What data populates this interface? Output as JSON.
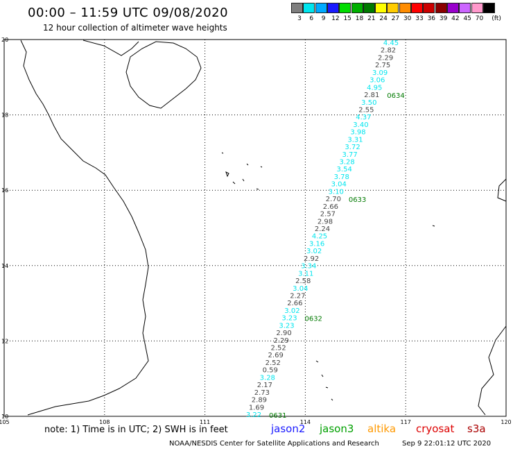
{
  "header": {
    "title": "00:00 – 11:59 UTC 09/08/2020",
    "subtitle": "12 hour collection of altimeter wave heights"
  },
  "legend": {
    "unit": "(ft)",
    "bins": [
      {
        "label": "3",
        "color": "#7f7f7f"
      },
      {
        "label": "6",
        "color": "#00e5ee"
      },
      {
        "label": "9",
        "color": "#00aaff"
      },
      {
        "label": "12",
        "color": "#1a1aff"
      },
      {
        "label": "15",
        "color": "#00dd00"
      },
      {
        "label": "18",
        "color": "#00b000"
      },
      {
        "label": "21",
        "color": "#007a00"
      },
      {
        "label": "24",
        "color": "#ffff00"
      },
      {
        "label": "27",
        "color": "#ffcc00"
      },
      {
        "label": "30",
        "color": "#ff8c00"
      },
      {
        "label": "33",
        "color": "#ff0000"
      },
      {
        "label": "36",
        "color": "#cc0000"
      },
      {
        "label": "39",
        "color": "#8b0000"
      },
      {
        "label": "42",
        "color": "#9900cc"
      },
      {
        "label": "45",
        "color": "#cc66ff"
      },
      {
        "label": "70",
        "color": "#ff99cc"
      },
      {
        "label": "",
        "color": "#000000"
      }
    ]
  },
  "map": {
    "lon_ticks": [
      "105",
      "108",
      "111",
      "114",
      "117",
      "120"
    ],
    "lat_ticks": [
      "20",
      "18",
      "16",
      "14",
      "12",
      "10"
    ],
    "colors": {
      "cyan": "#00e5ee",
      "gray": "#444444",
      "time": "#007a00"
    },
    "track_times": [
      {
        "label": "0634",
        "value_index": 7
      },
      {
        "label": "0633",
        "value_index": 21
      },
      {
        "label": "0632",
        "value_index": 37
      },
      {
        "label": "0631",
        "value_index": 50
      }
    ],
    "wave_heights": [
      {
        "v": "4.45",
        "c": "cyan"
      },
      {
        "v": "2.82",
        "c": "gray"
      },
      {
        "v": "2.29",
        "c": "gray"
      },
      {
        "v": "2.75",
        "c": "gray"
      },
      {
        "v": "3.09",
        "c": "cyan"
      },
      {
        "v": "3.06",
        "c": "cyan"
      },
      {
        "v": "4.95",
        "c": "cyan"
      },
      {
        "v": "2.81",
        "c": "gray"
      },
      {
        "v": "3.50",
        "c": "cyan"
      },
      {
        "v": "2.55",
        "c": "gray"
      },
      {
        "v": "4.37",
        "c": "cyan"
      },
      {
        "v": "3.40",
        "c": "cyan"
      },
      {
        "v": "3.98",
        "c": "cyan"
      },
      {
        "v": "3.31",
        "c": "cyan"
      },
      {
        "v": "3.72",
        "c": "cyan"
      },
      {
        "v": "3.77",
        "c": "cyan"
      },
      {
        "v": "3.28",
        "c": "cyan"
      },
      {
        "v": "3.54",
        "c": "cyan"
      },
      {
        "v": "3.78",
        "c": "cyan"
      },
      {
        "v": "3.04",
        "c": "cyan"
      },
      {
        "v": "3.10",
        "c": "cyan"
      },
      {
        "v": "2.70",
        "c": "gray"
      },
      {
        "v": "2.66",
        "c": "gray"
      },
      {
        "v": "2.57",
        "c": "gray"
      },
      {
        "v": "2.98",
        "c": "gray"
      },
      {
        "v": "2.24",
        "c": "gray"
      },
      {
        "v": "4.25",
        "c": "cyan"
      },
      {
        "v": "3.16",
        "c": "cyan"
      },
      {
        "v": "3.02",
        "c": "cyan"
      },
      {
        "v": "2.92",
        "c": "gray"
      },
      {
        "v": "3.34",
        "c": "cyan"
      },
      {
        "v": "3.11",
        "c": "cyan"
      },
      {
        "v": "2.58",
        "c": "gray"
      },
      {
        "v": "3.04",
        "c": "cyan"
      },
      {
        "v": "2.27",
        "c": "gray"
      },
      {
        "v": "2.66",
        "c": "gray"
      },
      {
        "v": "3.02",
        "c": "cyan"
      },
      {
        "v": "3.23",
        "c": "cyan"
      },
      {
        "v": "3.23",
        "c": "cyan"
      },
      {
        "v": "2.90",
        "c": "gray"
      },
      {
        "v": "2.29",
        "c": "gray"
      },
      {
        "v": "2.52",
        "c": "gray"
      },
      {
        "v": "2.69",
        "c": "gray"
      },
      {
        "v": "2.52",
        "c": "gray"
      },
      {
        "v": "0.59",
        "c": "gray"
      },
      {
        "v": "3.28",
        "c": "cyan"
      },
      {
        "v": "2.17",
        "c": "gray"
      },
      {
        "v": "2.73",
        "c": "gray"
      },
      {
        "v": "2.89",
        "c": "gray"
      },
      {
        "v": "1.69",
        "c": "gray"
      },
      {
        "v": "3.22",
        "c": "cyan"
      }
    ]
  },
  "footer": {
    "note": "note: 1) Time is in UTC; 2) SWH is in feet",
    "satellites": [
      {
        "name": "jason2",
        "color": "#1a1aff"
      },
      {
        "name": "jason3",
        "color": "#00a000"
      },
      {
        "name": "altika",
        "color": "#ff9900"
      },
      {
        "name": "cryosat",
        "color": "#dd0000"
      },
      {
        "name": "s3a",
        "color": "#aa0000"
      }
    ],
    "credit": "NOAA/NESDIS Center for Satellite Applications and Research",
    "timestamp": "Sep  9 22:01:12 UTC 2020"
  }
}
